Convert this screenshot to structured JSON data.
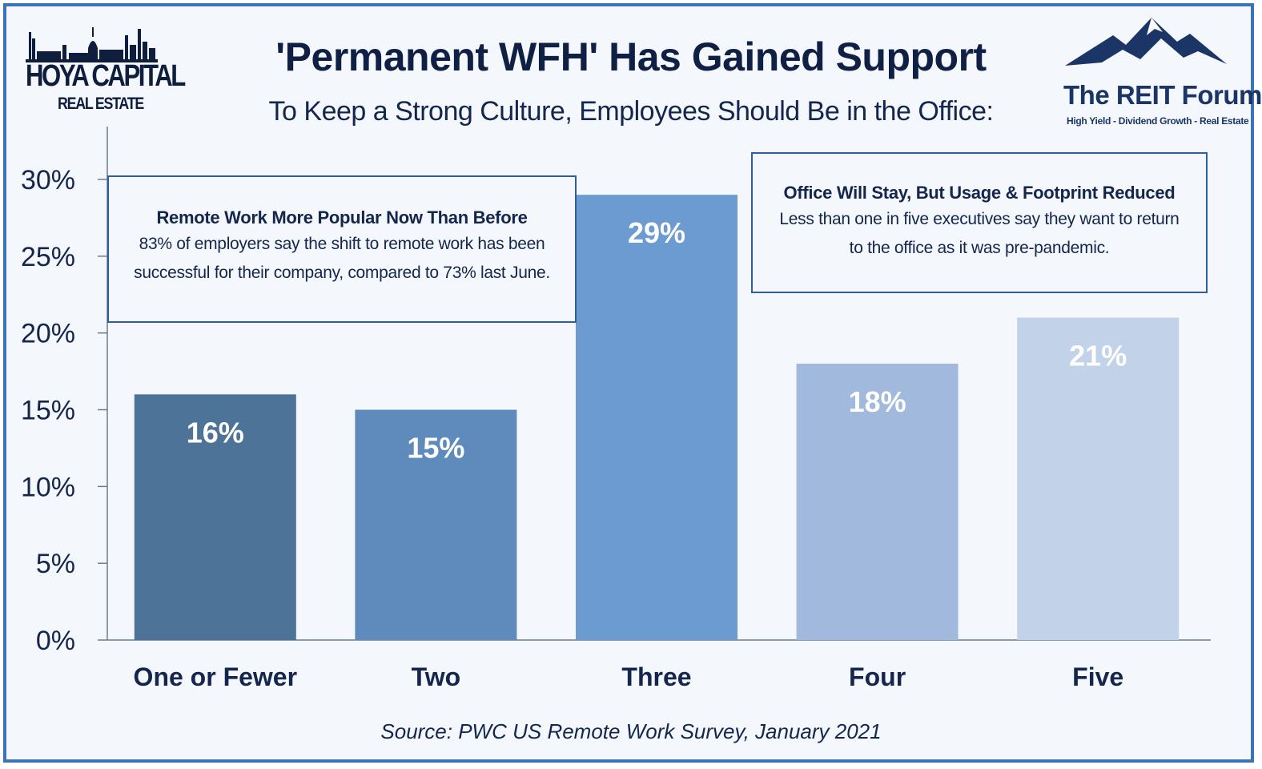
{
  "header": {
    "title": "'Permanent WFH' Has Gained Support",
    "subtitle": "To Keep a Strong Culture, Employees Should Be in the Office:"
  },
  "logos": {
    "left_brand": "HOYA CAPITAL",
    "left_sub": "REAL ESTATE",
    "right_brand": "The REIT Forum",
    "right_tagline": "High Yield - Dividend Growth - Real Estate"
  },
  "callouts": {
    "left": {
      "heading": "Remote Work More Popular Now Than Before",
      "line1": "83% of employers  say the shift to remote work has been",
      "line2": "successful for their company, compared to 73% last June."
    },
    "right": {
      "heading": "Office Will Stay, But Usage & Footprint Reduced",
      "line1": "Less than one in five executives say they want to return",
      "line2": "to the office as it was pre-pandemic."
    }
  },
  "footer": {
    "source": "Source: PWC US Remote Work Survey, January 2021"
  },
  "chart_data": {
    "type": "bar",
    "title": "'Permanent WFH' Has Gained Support",
    "subtitle": "To Keep a Strong Culture, Employees Should Be in the Office:",
    "categories": [
      "One or Fewer",
      "Two",
      "Three",
      "Four",
      "Five"
    ],
    "values": [
      16,
      15,
      29,
      18,
      21
    ],
    "value_labels": [
      "16%",
      "15%",
      "29%",
      "18%",
      "21%"
    ],
    "bar_colors": [
      "#4d7399",
      "#5f8abc",
      "#6b9bd0",
      "#a0b9dd",
      "#c2d2e9"
    ],
    "ylim": [
      0,
      30
    ],
    "yticks": [
      0,
      5,
      10,
      15,
      20,
      25,
      30
    ],
    "ytick_labels": [
      "0%",
      "5%",
      "10%",
      "15%",
      "20%",
      "25%",
      "30%"
    ],
    "xlabel": "",
    "ylabel": "",
    "grid": false,
    "legend": "none"
  }
}
